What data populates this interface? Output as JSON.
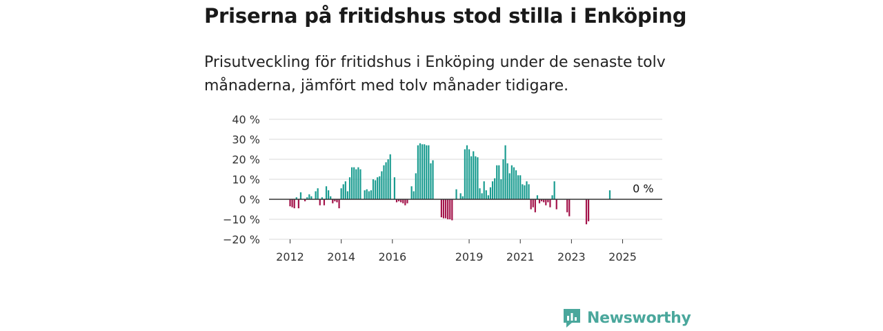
{
  "header": {
    "title": "Priserna på fritidshus stod stilla i Enköping",
    "subtitle": "Prisutveckling för fritidshus i Enköping under de senaste tolv månaderna, jämfört med tolv månader tidigare."
  },
  "brand": {
    "name": "Newsworthy",
    "icon": "newsworthy-logo-icon",
    "color": "#4aa79c"
  },
  "colors": {
    "positive": "#1a9c90",
    "negative": "#a3134a",
    "grid": "#d9d9d9",
    "zero": "#333333"
  },
  "chart_data": {
    "type": "bar",
    "title": "Priserna på fritidshus stod stilla i Enköping",
    "xlabel": "",
    "ylabel": "",
    "ylim": [
      -20,
      40
    ],
    "yticks": [
      -20,
      -10,
      0,
      10,
      20,
      30,
      40
    ],
    "ytick_labels": [
      "−20 %",
      "−10 %",
      "0 %",
      "10 %",
      "20 %",
      "30 %",
      "40 %"
    ],
    "xticks": [
      {
        "label": "2012",
        "year": 2012
      },
      {
        "label": "2014",
        "year": 2014
      },
      {
        "label": "2016",
        "year": 2016
      },
      {
        "label": "2019",
        "year": 2019
      },
      {
        "label": "2021",
        "year": 2021
      },
      {
        "label": "2023",
        "year": 2023
      },
      {
        "label": "2025",
        "year": 2025
      }
    ],
    "start": {
      "year": 2012,
      "month": 1
    },
    "grid": true,
    "annotation": {
      "text": "0 %",
      "index": 165
    },
    "values": [
      -3.5,
      -4,
      -4.5,
      1,
      -4.5,
      3.5,
      null,
      -1,
      1,
      2.5,
      1.5,
      null,
      4,
      5.5,
      -3,
      1,
      -3,
      6.5,
      4.5,
      1.5,
      -2,
      -1,
      -1.5,
      -4.5,
      5.5,
      7.5,
      9,
      4,
      11,
      16,
      16,
      15,
      16,
      15,
      null,
      4.5,
      5,
      4,
      4.5,
      10,
      9.5,
      11,
      11.5,
      14,
      17,
      18.5,
      20,
      22.5,
      null,
      11,
      -1.5,
      -1,
      -1.5,
      -2,
      -3,
      -2,
      null,
      6.5,
      4,
      13,
      27,
      28,
      27.5,
      27.5,
      27,
      27,
      18,
      19.5,
      null,
      null,
      null,
      -9,
      -9.5,
      -9.5,
      -10,
      -10,
      -10.5,
      null,
      5,
      null,
      3,
      1.5,
      25,
      27,
      25,
      21.5,
      24,
      21.5,
      21,
      5.5,
      3,
      9,
      4.5,
      2,
      6,
      9,
      10.5,
      17,
      17,
      10,
      20,
      27,
      18,
      13,
      17,
      16,
      14.5,
      12,
      12,
      7.5,
      7,
      9,
      7.5,
      -5,
      -4,
      -6.5,
      2,
      -2,
      -1,
      -1.5,
      -3,
      -1.5,
      -4,
      2,
      9,
      -5,
      null,
      null,
      null,
      null,
      -6.5,
      -8.5,
      null,
      null,
      null,
      null,
      null,
      null,
      null,
      -12.5,
      -11,
      null,
      null,
      null,
      null,
      null,
      null,
      null,
      null,
      null,
      4.5,
      null,
      null,
      null
    ]
  }
}
